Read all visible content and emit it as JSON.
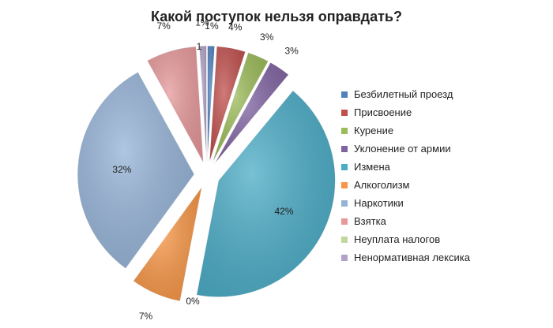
{
  "chart_data": {
    "type": "pie",
    "title": "Какой поступок нельзя оправдать?",
    "legend_position": "right",
    "slices": [
      {
        "label": "Безбилетный проезд",
        "value": 1,
        "display": "1%",
        "color": "#4f81bd"
      },
      {
        "label": "Присвоение",
        "value": 4,
        "display": "4%",
        "color": "#c0504d"
      },
      {
        "label": "Курение",
        "value": 3,
        "display": "3%",
        "color": "#9bbb59"
      },
      {
        "label": "Уклонение от армии",
        "value": 3,
        "display": "3%",
        "color": "#8064a2"
      },
      {
        "label": "Измена",
        "value": 42,
        "display": "42%",
        "color": "#4bacc6"
      },
      {
        "label": "Алкоголизм",
        "value": 7,
        "display": "7%",
        "color": "#f79646"
      },
      {
        "label": "Наркотики",
        "value": 32,
        "display": "32%",
        "color": "#95b3d7"
      },
      {
        "label": "Взятка",
        "value": 7,
        "display": "7%",
        "color": "#e6989a"
      },
      {
        "label": "Неуплата налогов",
        "value": 0,
        "display": "0%",
        "color": "#c3d69b"
      },
      {
        "label": "Ненормативная лексика",
        "value": 1,
        "display": "1%",
        "color": "#b2a2c7"
      }
    ],
    "extra_labels": [
      "1"
    ]
  }
}
